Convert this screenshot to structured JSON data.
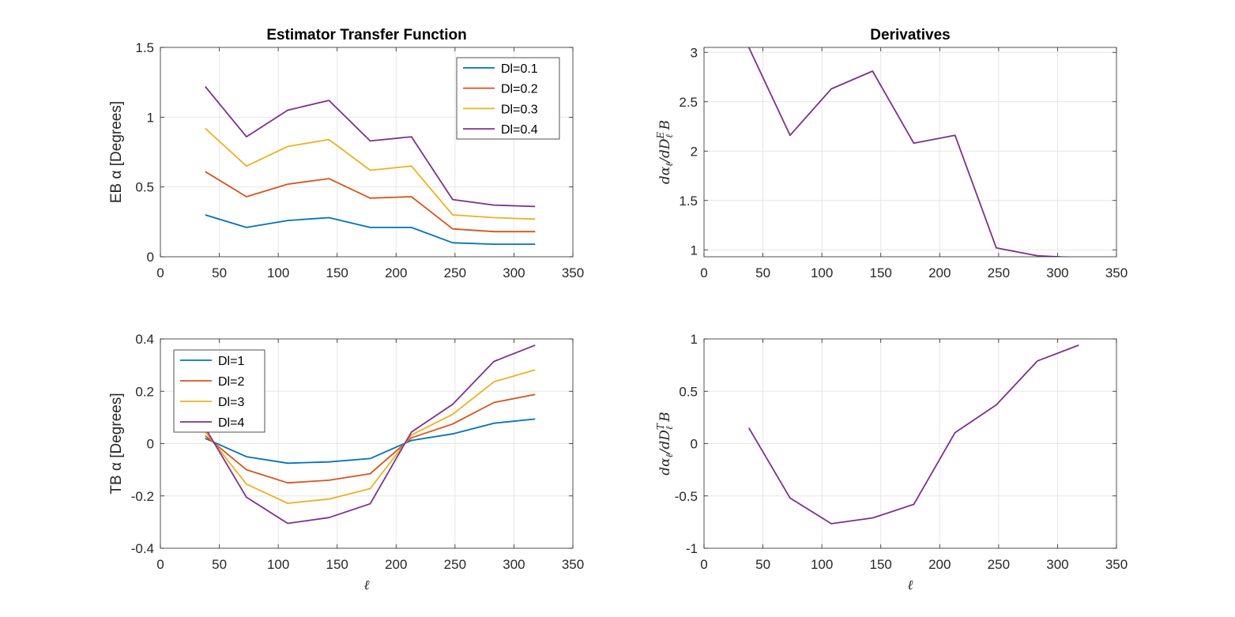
{
  "chart_data": [
    {
      "type": "line",
      "title": "Estimator Transfer Function",
      "xlabel": "",
      "ylabel": "EB α [Degrees]",
      "xlim": [
        0,
        350
      ],
      "ylim": [
        0,
        1.5
      ],
      "xticks": [
        0,
        50,
        100,
        150,
        200,
        250,
        300,
        350
      ],
      "yticks": [
        0,
        0.5,
        1,
        1.5
      ],
      "xtick_labels": [
        "0",
        "50",
        "100",
        "150",
        "200",
        "250",
        "300",
        "350"
      ],
      "ytick_labels": [
        "0",
        "0.5",
        "1",
        "1.5"
      ],
      "grid": true,
      "legend": "top-right",
      "x": [
        38,
        73,
        108,
        143,
        178,
        213,
        248,
        283,
        318
      ],
      "series": [
        {
          "name": "Dl=0.1",
          "color": "#0072BD",
          "values": [
            0.3,
            0.21,
            0.26,
            0.28,
            0.21,
            0.21,
            0.1,
            0.09,
            0.09
          ]
        },
        {
          "name": "Dl=0.2",
          "color": "#D95319",
          "values": [
            0.61,
            0.43,
            0.52,
            0.56,
            0.42,
            0.43,
            0.2,
            0.18,
            0.18
          ]
        },
        {
          "name": "Dl=0.3",
          "color": "#EDB120",
          "values": [
            0.92,
            0.65,
            0.79,
            0.84,
            0.62,
            0.65,
            0.3,
            0.28,
            0.27
          ]
        },
        {
          "name": "Dl=0.4",
          "color": "#7E2F8E",
          "values": [
            1.22,
            0.86,
            1.05,
            1.12,
            0.83,
            0.86,
            0.41,
            0.37,
            0.36
          ]
        }
      ]
    },
    {
      "type": "line",
      "title": "Derivatives",
      "xlabel": "",
      "ylabel": "dα_ℓ/dD_ℓ^E B",
      "xlim": [
        0,
        350
      ],
      "ylim": [
        0.93,
        3.05
      ],
      "xticks": [
        0,
        50,
        100,
        150,
        200,
        250,
        300,
        350
      ],
      "yticks": [
        1,
        1.5,
        2,
        2.5,
        3
      ],
      "xtick_labels": [
        "0",
        "50",
        "100",
        "150",
        "200",
        "250",
        "300",
        "350"
      ],
      "ytick_labels": [
        "1",
        "1.5",
        "2",
        "2.5",
        "3"
      ],
      "grid": true,
      "x": [
        38,
        73,
        108,
        143,
        178,
        213,
        248,
        283,
        318
      ],
      "series": [
        {
          "color": "#7E2F8E",
          "values": [
            3.05,
            2.16,
            2.63,
            2.81,
            2.08,
            2.16,
            1.02,
            0.94,
            0.92
          ]
        }
      ]
    },
    {
      "type": "line",
      "title": "",
      "xlabel": "ℓ",
      "ylabel": "TB α [Degrees]",
      "xlim": [
        0,
        350
      ],
      "ylim": [
        -0.4,
        0.4
      ],
      "xticks": [
        0,
        50,
        100,
        150,
        200,
        250,
        300,
        350
      ],
      "yticks": [
        -0.4,
        -0.2,
        0,
        0.2,
        0.4
      ],
      "xtick_labels": [
        "0",
        "50",
        "100",
        "150",
        "200",
        "250",
        "300",
        "350"
      ],
      "ytick_labels": [
        "-0.4",
        "-0.2",
        "0",
        "0.2",
        "0.4"
      ],
      "grid": true,
      "legend": "top-left",
      "x": [
        38,
        73,
        108,
        143,
        178,
        213,
        248,
        283,
        318
      ],
      "series": [
        {
          "name": "Dl=1",
          "color": "#0072BD",
          "values": [
            0.02,
            -0.05,
            -0.075,
            -0.07,
            -0.057,
            0.012,
            0.037,
            0.078,
            0.094
          ]
        },
        {
          "name": "Dl=2",
          "color": "#D95319",
          "values": [
            0.03,
            -0.1,
            -0.15,
            -0.14,
            -0.115,
            0.022,
            0.075,
            0.157,
            0.188
          ]
        },
        {
          "name": "Dl=3",
          "color": "#EDB120",
          "values": [
            0.045,
            -0.155,
            -0.228,
            -0.212,
            -0.172,
            0.033,
            0.112,
            0.236,
            0.282
          ]
        },
        {
          "name": "Dl=4",
          "color": "#7E2F8E",
          "values": [
            0.06,
            -0.205,
            -0.305,
            -0.283,
            -0.23,
            0.044,
            0.15,
            0.314,
            0.376
          ]
        }
      ]
    },
    {
      "type": "line",
      "title": "",
      "xlabel": "ℓ",
      "ylabel": "dα_ℓ/dD_ℓ^T B",
      "xlim": [
        0,
        350
      ],
      "ylim": [
        -1,
        1
      ],
      "xticks": [
        0,
        50,
        100,
        150,
        200,
        250,
        300,
        350
      ],
      "yticks": [
        -1,
        -0.5,
        0,
        0.5,
        1
      ],
      "xtick_labels": [
        "0",
        "50",
        "100",
        "150",
        "200",
        "250",
        "300",
        "350"
      ],
      "ytick_labels": [
        "-1",
        "-0.5",
        "0",
        "0.5",
        "1"
      ],
      "grid": true,
      "x": [
        38,
        73,
        108,
        143,
        178,
        213,
        248,
        283,
        318
      ],
      "series": [
        {
          "color": "#7E2F8E",
          "values": [
            0.15,
            -0.52,
            -0.765,
            -0.71,
            -0.58,
            0.105,
            0.37,
            0.79,
            0.94
          ]
        }
      ]
    }
  ]
}
